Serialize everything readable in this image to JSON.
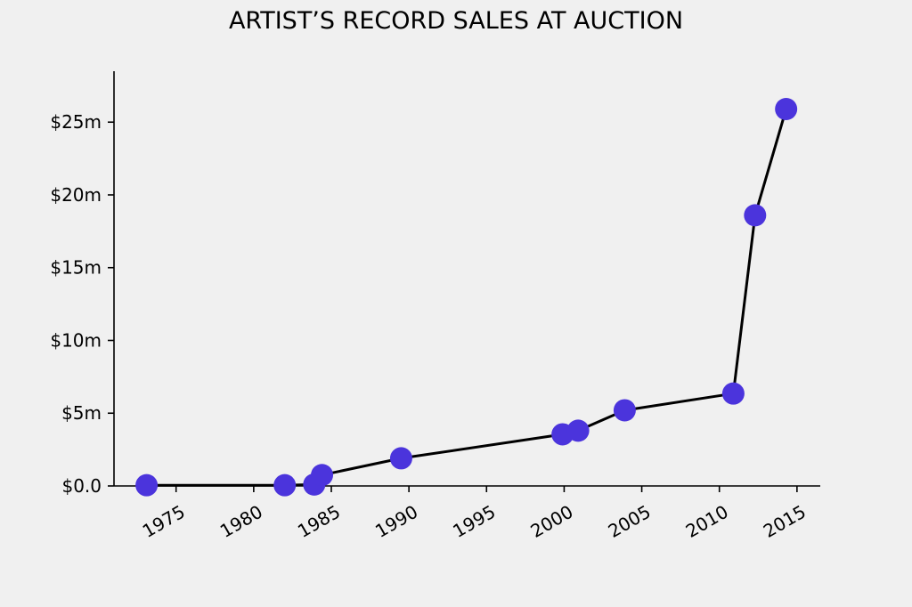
{
  "chart_data": {
    "type": "line",
    "title": "ARTIST’S RECORD SALES AT AUCTION",
    "xlabel": "",
    "ylabel": "",
    "x": [
      1973.1,
      1982.0,
      1983.9,
      1984.4,
      1989.5,
      1999.9,
      2000.9,
      2003.9,
      2010.9,
      2012.3,
      2014.3
    ],
    "series": [
      {
        "values": [
          0.05,
          0.05,
          0.1,
          0.75,
          1.9,
          3.55,
          3.8,
          5.2,
          6.35,
          18.6,
          25.9
        ]
      }
    ],
    "xlim": [
      1971.0,
      2016.5
    ],
    "ylim": [
      0,
      28.5
    ],
    "xticks": [
      1975,
      1980,
      1985,
      1990,
      1995,
      2000,
      2005,
      2010,
      2015
    ],
    "xtick_labels": [
      "1975",
      "1980",
      "1985",
      "1990",
      "1995",
      "2000",
      "2005",
      "2010",
      "2015"
    ],
    "yticks": [
      0,
      5,
      10,
      15,
      20,
      25
    ],
    "ytick_labels": [
      "$0.0",
      "$5m",
      "$10m",
      "$15m",
      "$20m",
      "$25m"
    ],
    "grid": false,
    "legend": "none",
    "colors": {
      "line": "#000000",
      "marker": "#4b34dc",
      "background": "#f0f0f0"
    }
  }
}
